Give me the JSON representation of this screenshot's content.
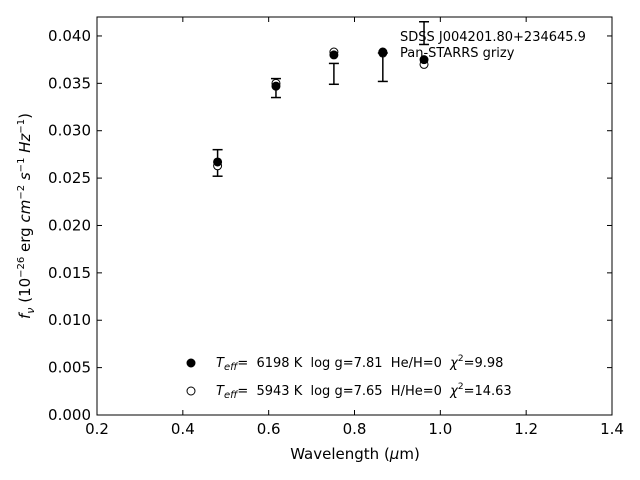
{
  "chart_data": {
    "type": "scatter",
    "xlabel": "Wavelength (μm)",
    "ylabel": "f_ν (10^-26 erg cm^-2 s^-1 Hz^-1)",
    "xlim": [
      0.2,
      1.4
    ],
    "ylim": [
      0.0,
      0.042
    ],
    "xticks": [
      0.2,
      0.4,
      0.6,
      0.8,
      1.0,
      1.2,
      1.4
    ],
    "xtick_labels": [
      "0.2",
      "0.4",
      "0.6",
      "0.8",
      "1.0",
      "1.2",
      "1.4"
    ],
    "yticks": [
      0.0,
      0.005,
      0.01,
      0.015,
      0.02,
      0.025,
      0.03,
      0.035,
      0.04
    ],
    "ytick_labels": [
      "0.000",
      "0.005",
      "0.010",
      "0.015",
      "0.020",
      "0.025",
      "0.030",
      "0.035",
      "0.040"
    ],
    "grid": false,
    "annotation": {
      "line1": "SDSS J004201.80+234645.9",
      "line2": "Pan-STARRS grizy"
    },
    "observed": {
      "x": [
        0.481,
        0.617,
        0.752,
        0.866,
        0.962
      ],
      "y": [
        0.0266,
        0.0345,
        0.036,
        0.0367,
        0.0403
      ],
      "err": [
        0.0014,
        0.001,
        0.0011,
        0.0015,
        0.0012
      ]
    },
    "series": [
      {
        "name": "T_eff= 6198 K log g=7.81 He/H=0 χ2=9.98",
        "marker": "filled-circle",
        "x": [
          0.481,
          0.617,
          0.752,
          0.866,
          0.962
        ],
        "y": [
          0.0267,
          0.0347,
          0.038,
          0.0383,
          0.0375
        ]
      },
      {
        "name": "T_eff= 5943 K log g=7.65 H/He=0 χ2=14.63",
        "marker": "open-circle",
        "x": [
          0.481,
          0.617,
          0.752,
          0.866,
          0.962
        ],
        "y": [
          0.0263,
          0.035,
          0.0383,
          0.0382,
          0.037
        ]
      }
    ],
    "legend": {
      "placement": "lower-center",
      "entries": [
        {
          "teff_prefix": "T",
          "teff_sub": "eff",
          "text": "=  6198 K  log g=7.81  He/H=0  ",
          "chi_label": "χ",
          "chi_sup": "2",
          "chi_value": "=9.98"
        },
        {
          "teff_prefix": "T",
          "teff_sub": "eff",
          "text": "=  5943 K  log g=7.65  H/He=0  ",
          "chi_label": "χ",
          "chi_sup": "2",
          "chi_value": "=14.63"
        }
      ]
    },
    "colors": {
      "marker": "#000000",
      "background": "#ffffff"
    }
  }
}
